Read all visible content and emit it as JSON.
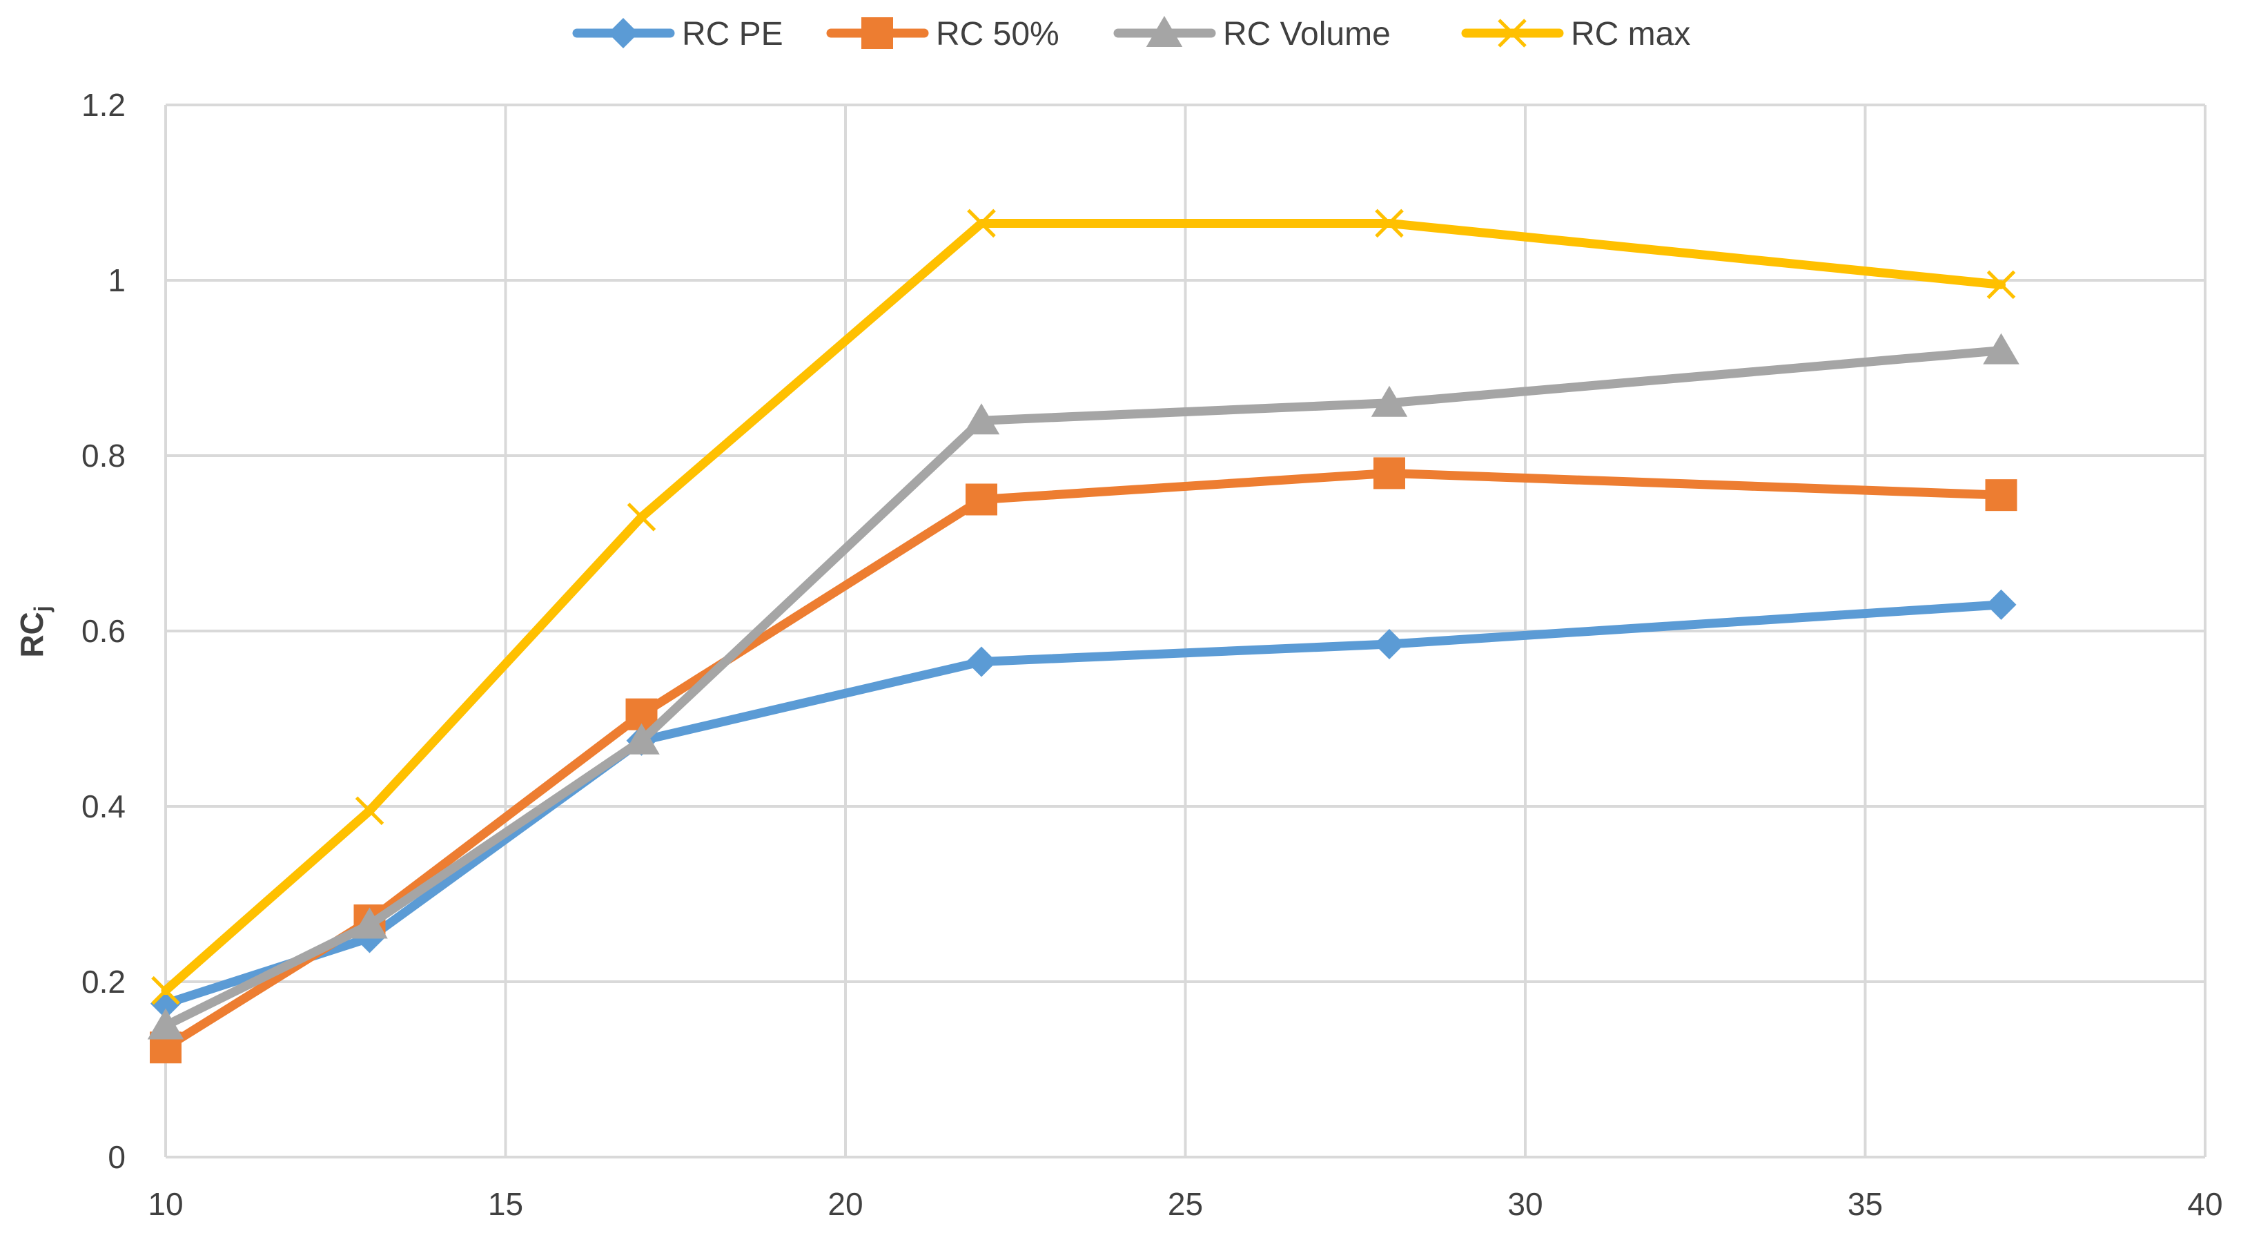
{
  "chart_data": {
    "type": "line",
    "title": "",
    "xlabel": "",
    "ylabel": "RC",
    "ylabel_subscript": "j",
    "xlim": [
      10,
      40
    ],
    "ylim": [
      0,
      1.2
    ],
    "x_ticks": [
      "10",
      "15",
      "20",
      "25",
      "30",
      "35",
      "40"
    ],
    "y_ticks": [
      "0",
      "0.2",
      "0.4",
      "0.6",
      "0.8",
      "1",
      "1.2"
    ],
    "grid": true,
    "legend_position": "top",
    "x": [
      10,
      13,
      17,
      22,
      28,
      37
    ],
    "series": [
      {
        "name": "RC PE",
        "color": "#5B9BD5",
        "marker": "diamond",
        "values": [
          0.175,
          0.25,
          0.475,
          0.565,
          0.585,
          0.63
        ]
      },
      {
        "name": "RC 50%",
        "color": "#ED7D31",
        "marker": "square",
        "values": [
          0.125,
          0.27,
          0.505,
          0.75,
          0.78,
          0.755
        ]
      },
      {
        "name": "RC Volume",
        "color": "#A5A5A5",
        "marker": "triangle",
        "values": [
          0.15,
          0.265,
          0.475,
          0.84,
          0.86,
          0.92
        ]
      },
      {
        "name": "RC max",
        "color": "#FFC000",
        "marker": "x",
        "values": [
          0.19,
          0.395,
          0.73,
          1.065,
          1.065,
          0.995
        ]
      }
    ]
  }
}
